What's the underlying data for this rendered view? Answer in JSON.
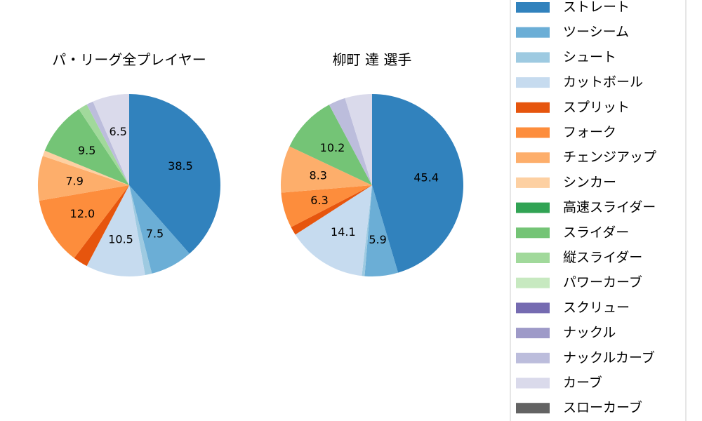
{
  "pitch_types": [
    {
      "name": "ストレート",
      "color": "#3182bd"
    },
    {
      "name": "ツーシーム",
      "color": "#6baed6"
    },
    {
      "name": "シュート",
      "color": "#9ecae1"
    },
    {
      "name": "カットボール",
      "color": "#c6dbef"
    },
    {
      "name": "スプリット",
      "color": "#e6550d"
    },
    {
      "name": "フォーク",
      "color": "#fd8d3c"
    },
    {
      "name": "チェンジアップ",
      "color": "#fdae6b"
    },
    {
      "name": "シンカー",
      "color": "#fdd0a2"
    },
    {
      "name": "高速スライダー",
      "color": "#31a354"
    },
    {
      "name": "スライダー",
      "color": "#74c476"
    },
    {
      "name": "縦スライダー",
      "color": "#a1d99b"
    },
    {
      "name": "パワーカーブ",
      "color": "#c7e9c0"
    },
    {
      "name": "スクリュー",
      "color": "#756bb1"
    },
    {
      "name": "ナックル",
      "color": "#9e9ac8"
    },
    {
      "name": "ナックルカーブ",
      "color": "#bcbddc"
    },
    {
      "name": "カーブ",
      "color": "#dadaeb"
    },
    {
      "name": "スローカーブ",
      "color": "#636363"
    }
  ],
  "chart_data": [
    {
      "type": "pie",
      "title": "パ・リーグ全プレイヤー",
      "start_angle_deg": 90,
      "direction": "clockwise",
      "label_min_pct": 5,
      "categories": [
        "ストレート",
        "ツーシーム",
        "シュート",
        "カットボール",
        "スプリット",
        "フォーク",
        "チェンジアップ",
        "シンカー",
        "高速スライダー",
        "スライダー",
        "縦スライダー",
        "パワーカーブ",
        "スクリュー",
        "ナックル",
        "ナックルカーブ",
        "カーブ",
        "スローカーブ"
      ],
      "values": [
        38.5,
        7.5,
        1.2,
        10.5,
        2.6,
        12.0,
        7.9,
        1.0,
        0.0,
        9.5,
        1.6,
        0.0,
        0.0,
        0.0,
        1.2,
        6.5,
        0.0
      ]
    },
    {
      "type": "pie",
      "title": "柳町 達  選手",
      "start_angle_deg": 90,
      "direction": "clockwise",
      "label_min_pct": 5,
      "categories": [
        "ストレート",
        "ツーシーム",
        "シュート",
        "カットボール",
        "スプリット",
        "フォーク",
        "チェンジアップ",
        "シンカー",
        "高速スライダー",
        "スライダー",
        "縦スライダー",
        "パワーカーブ",
        "スクリュー",
        "ナックル",
        "ナックルカーブ",
        "カーブ",
        "スローカーブ"
      ],
      "values": [
        45.4,
        5.9,
        0.5,
        14.1,
        1.5,
        6.3,
        8.3,
        0.0,
        0.0,
        10.2,
        0.0,
        0.0,
        0.0,
        0.0,
        3.0,
        4.8,
        0.0
      ]
    }
  ]
}
